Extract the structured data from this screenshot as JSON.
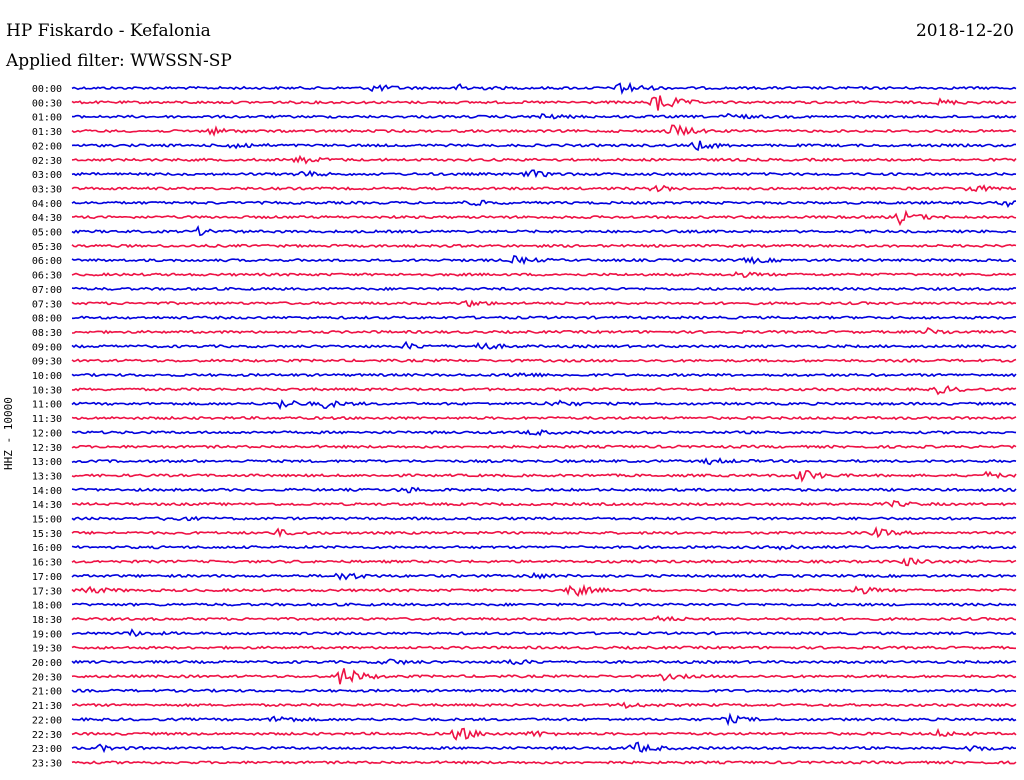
{
  "header": {
    "title": "HP Fiskardo - Kefalonia",
    "date": "2018-12-20",
    "filter": "Applied filter: WWSSN-SP"
  },
  "chart_data": {
    "type": "line",
    "ylabel": "HHZ - 10000",
    "colors": {
      "even": "#0000dd",
      "odd": "#ee1144"
    },
    "rows": [
      "00:00",
      "00:30",
      "01:00",
      "01:30",
      "02:00",
      "02:30",
      "03:00",
      "03:30",
      "04:00",
      "04:30",
      "05:00",
      "05:30",
      "06:00",
      "06:30",
      "07:00",
      "07:30",
      "08:00",
      "08:30",
      "09:00",
      "09:30",
      "10:00",
      "10:30",
      "11:00",
      "11:30",
      "12:00",
      "12:30",
      "13:00",
      "13:30",
      "14:00",
      "14:30",
      "15:00",
      "15:30",
      "16:00",
      "16:30",
      "17:00",
      "17:30",
      "18:00",
      "18:30",
      "19:00",
      "19:30",
      "20:00",
      "20:30",
      "21:00",
      "21:30",
      "22:00",
      "22:30",
      "23:00",
      "23:30"
    ],
    "x_range_minutes": [
      0,
      30
    ],
    "events": [
      {
        "row": 0,
        "minute": 17.4,
        "amp": 8
      },
      {
        "row": 0,
        "minute": 9.5,
        "amp": 4
      },
      {
        "row": 0,
        "minute": 12.3,
        "amp": 4
      },
      {
        "row": 1,
        "minute": 18.5,
        "amp": 14
      },
      {
        "row": 1,
        "minute": 27.5,
        "amp": 3
      },
      {
        "row": 2,
        "minute": 14.8,
        "amp": 3
      },
      {
        "row": 2,
        "minute": 20.8,
        "amp": 3
      },
      {
        "row": 3,
        "minute": 19.0,
        "amp": 8
      },
      {
        "row": 3,
        "minute": 4.3,
        "amp": 4
      },
      {
        "row": 4,
        "minute": 5.0,
        "amp": 5
      },
      {
        "row": 4,
        "minute": 19.8,
        "amp": 5
      },
      {
        "row": 5,
        "minute": 7.2,
        "amp": 4
      },
      {
        "row": 6,
        "minute": 7.1,
        "amp": 4
      },
      {
        "row": 6,
        "minute": 14.5,
        "amp": 4
      },
      {
        "row": 7,
        "minute": 18.5,
        "amp": 3
      },
      {
        "row": 7,
        "minute": 28.5,
        "amp": 4
      },
      {
        "row": 8,
        "minute": 12.6,
        "amp": 3
      },
      {
        "row": 8,
        "minute": 29.7,
        "amp": 3
      },
      {
        "row": 9,
        "minute": 26.3,
        "amp": 7
      },
      {
        "row": 10,
        "minute": 3.9,
        "amp": 4
      },
      {
        "row": 12,
        "minute": 14.0,
        "amp": 4
      },
      {
        "row": 12,
        "minute": 21.5,
        "amp": 3
      },
      {
        "row": 13,
        "minute": 21.0,
        "amp": 3
      },
      {
        "row": 15,
        "minute": 12.5,
        "amp": 3
      },
      {
        "row": 17,
        "minute": 27.2,
        "amp": 3
      },
      {
        "row": 18,
        "minute": 10.6,
        "amp": 3
      },
      {
        "row": 18,
        "minute": 12.9,
        "amp": 4
      },
      {
        "row": 20,
        "minute": 14.0,
        "amp": 3
      },
      {
        "row": 21,
        "minute": 27.5,
        "amp": 4
      },
      {
        "row": 22,
        "minute": 6.6,
        "amp": 5
      },
      {
        "row": 22,
        "minute": 8.0,
        "amp": 4
      },
      {
        "row": 22,
        "minute": 15.2,
        "amp": 4
      },
      {
        "row": 24,
        "minute": 14.5,
        "amp": 3
      },
      {
        "row": 26,
        "minute": 20.2,
        "amp": 3
      },
      {
        "row": 27,
        "minute": 23.1,
        "amp": 8
      },
      {
        "row": 27,
        "minute": 29.0,
        "amp": 3
      },
      {
        "row": 28,
        "minute": 10.5,
        "amp": 3
      },
      {
        "row": 29,
        "minute": 26.0,
        "amp": 3
      },
      {
        "row": 30,
        "minute": 3.0,
        "amp": 3
      },
      {
        "row": 31,
        "minute": 6.5,
        "amp": 3
      },
      {
        "row": 31,
        "minute": 25.5,
        "amp": 4
      },
      {
        "row": 32,
        "minute": 22.5,
        "amp": 3
      },
      {
        "row": 33,
        "minute": 26.5,
        "amp": 4
      },
      {
        "row": 34,
        "minute": 8.5,
        "amp": 5
      },
      {
        "row": 34,
        "minute": 14.5,
        "amp": 3
      },
      {
        "row": 35,
        "minute": 0.4,
        "amp": 4
      },
      {
        "row": 35,
        "minute": 15.8,
        "amp": 8
      },
      {
        "row": 35,
        "minute": 24.8,
        "amp": 5
      },
      {
        "row": 37,
        "minute": 18.5,
        "amp": 3
      },
      {
        "row": 38,
        "minute": 1.8,
        "amp": 3
      },
      {
        "row": 40,
        "minute": 10.0,
        "amp": 3
      },
      {
        "row": 40,
        "minute": 13.8,
        "amp": 3
      },
      {
        "row": 41,
        "minute": 8.5,
        "amp": 12
      },
      {
        "row": 41,
        "minute": 18.8,
        "amp": 3
      },
      {
        "row": 43,
        "minute": 17.5,
        "amp": 3
      },
      {
        "row": 44,
        "minute": 6.4,
        "amp": 4
      },
      {
        "row": 44,
        "minute": 20.8,
        "amp": 4
      },
      {
        "row": 45,
        "minute": 12.2,
        "amp": 8
      },
      {
        "row": 45,
        "minute": 14.6,
        "amp": 3
      },
      {
        "row": 45,
        "minute": 27.5,
        "amp": 3
      },
      {
        "row": 46,
        "minute": 0.8,
        "amp": 3
      },
      {
        "row": 46,
        "minute": 17.8,
        "amp": 7
      },
      {
        "row": 46,
        "minute": 28.5,
        "amp": 3
      }
    ]
  }
}
